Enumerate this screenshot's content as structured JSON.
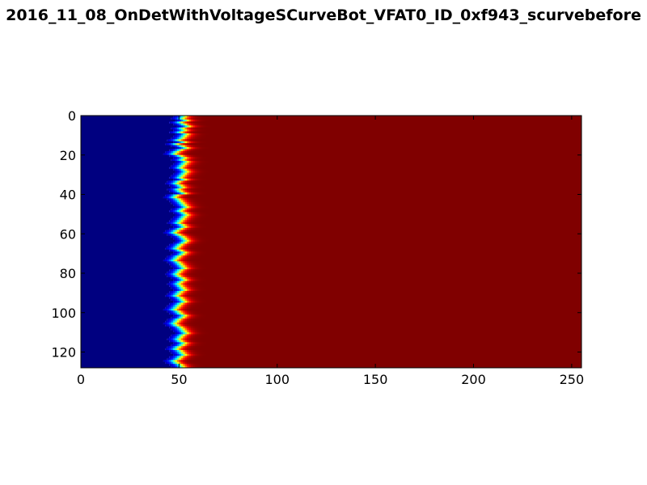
{
  "chart_data": {
    "type": "heatmap",
    "title": "2016_11_08_OnDetWithVoltageSCurveBot_VFAT0_ID_0xf943_scurvebefore",
    "xlabel": "",
    "ylabel": "",
    "xlim": [
      0,
      255
    ],
    "ylim": [
      128,
      0
    ],
    "y_inverted": true,
    "x_ticks": [
      "0",
      "50",
      "100",
      "150",
      "200",
      "250"
    ],
    "y_ticks": [
      "0",
      "20",
      "40",
      "60",
      "80",
      "100",
      "120"
    ],
    "colormap": "jet",
    "colors": {
      "low": "#00007f",
      "high": "#7f0000"
    },
    "rows": 128,
    "columns": 256,
    "description_values": {
      "low_region_value": 0,
      "high_region_value": 1
    },
    "s_curve_threshold_per_channel": [
      52,
      51,
      53,
      50,
      52,
      54,
      51,
      52,
      50,
      53,
      52,
      51,
      49,
      52,
      48,
      51,
      53,
      50,
      48,
      47,
      50,
      52,
      51,
      53,
      52,
      51,
      50,
      52,
      53,
      52,
      51,
      50,
      52,
      49,
      48,
      50,
      51,
      49,
      50,
      52,
      48,
      47,
      49,
      50,
      51,
      52,
      53,
      51,
      50,
      52,
      53,
      52,
      51,
      50,
      49,
      51,
      52,
      50,
      48,
      47,
      49,
      51,
      52,
      53,
      52,
      50,
      49,
      48,
      50,
      52,
      51,
      49,
      48,
      47,
      49,
      50,
      51,
      52,
      50,
      49,
      48,
      49,
      51,
      52,
      50,
      49,
      50,
      51,
      52,
      50,
      49,
      48,
      50,
      51,
      52,
      50,
      49,
      48,
      47,
      49,
      50,
      52,
      51,
      49,
      48,
      47,
      48,
      50,
      51,
      52,
      53,
      51,
      50,
      49,
      50,
      52,
      51,
      49,
      48,
      50,
      51,
      52,
      50,
      49,
      47,
      48,
      50,
      51
    ]
  }
}
